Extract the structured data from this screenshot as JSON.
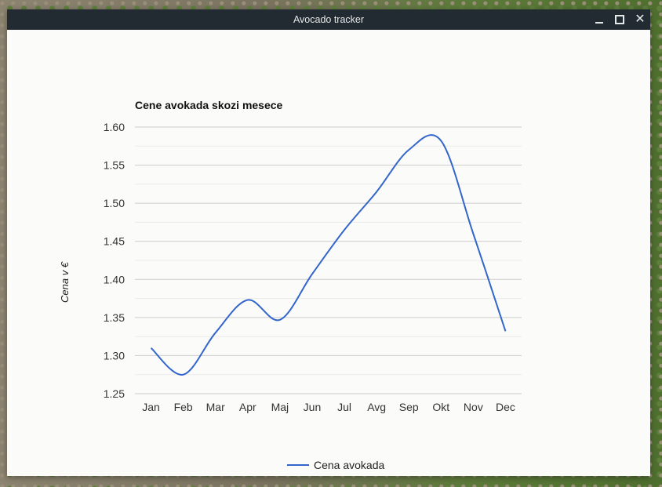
{
  "window": {
    "title": "Avocado tracker",
    "controls": {
      "minimize": "minimize-icon",
      "maximize": "maximize-icon",
      "close": "close-icon"
    },
    "close_glyph": "✕"
  },
  "colors": {
    "series": "#3366cc",
    "grid": "#cccccc",
    "titlebar": "#222b31"
  },
  "chart_data": {
    "type": "line",
    "title": "Cene avokada skozi mesece",
    "xlabel": "",
    "ylabel": "Cena v €",
    "categories": [
      "Jan",
      "Feb",
      "Mar",
      "Apr",
      "Maj",
      "Jun",
      "Jul",
      "Avg",
      "Sep",
      "Okt",
      "Nov",
      "Dec"
    ],
    "series": [
      {
        "name": "Cena avokada",
        "values": [
          1.31,
          1.275,
          1.33,
          1.373,
          1.347,
          1.407,
          1.465,
          1.515,
          1.57,
          1.582,
          1.46,
          1.332
        ]
      }
    ],
    "ylim": [
      1.25,
      1.6
    ],
    "yticks": [
      "1.25",
      "1.30",
      "1.35",
      "1.40",
      "1.45",
      "1.50",
      "1.55",
      "1.60"
    ],
    "grid": true,
    "legend_position": "bottom"
  }
}
